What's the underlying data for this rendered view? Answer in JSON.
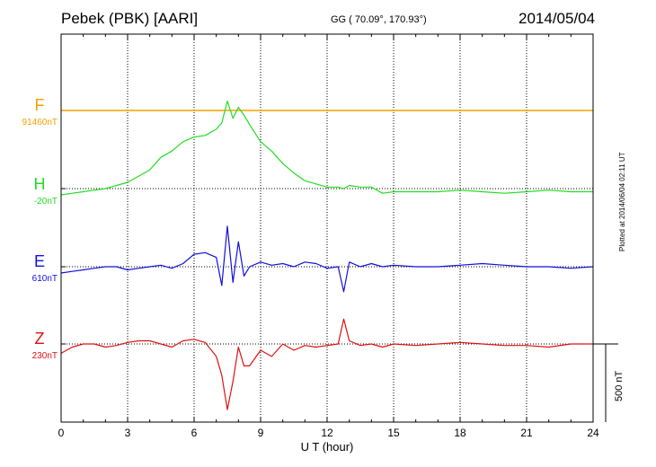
{
  "header": {
    "station": "Pebek (PBK)  [AARI]",
    "coords": "GG ( 70.09°, 170.93°)",
    "date": "2014/05/04"
  },
  "components": [
    {
      "letter": "F",
      "baseline": "91460nT",
      "color": "#f5a000"
    },
    {
      "letter": "H",
      "baseline": "-20nT",
      "color": "#22dd22"
    },
    {
      "letter": "E",
      "baseline": "610nT",
      "color": "#1010dd"
    },
    {
      "letter": "Z",
      "baseline": "230nT",
      "color": "#dd1111"
    }
  ],
  "scale_label": "500 nT",
  "plotted_note": "Plotted at 2014/06/04 02:11 UT",
  "chart_data": {
    "type": "line",
    "xlabel": "U T (hour)",
    "xlim": [
      0,
      24
    ],
    "xticks": [
      0,
      3,
      6,
      9,
      12,
      15,
      18,
      21,
      24
    ],
    "x": [
      0,
      0.5,
      1,
      1.5,
      2,
      2.5,
      3,
      3.5,
      4,
      4.5,
      5,
      5.5,
      6,
      6.5,
      7,
      7.25,
      7.5,
      7.75,
      8,
      8.25,
      8.5,
      9,
      9.5,
      10,
      10.5,
      11,
      11.5,
      12,
      12.5,
      12.75,
      13,
      13.5,
      14,
      14.5,
      15,
      16,
      17,
      18,
      19,
      20,
      21,
      22,
      23,
      24
    ],
    "series": [
      {
        "name": "F",
        "offset_nT": [
          0,
          0,
          0,
          0,
          0,
          0,
          0,
          0,
          0,
          0,
          0,
          0,
          0,
          0,
          0,
          0,
          0,
          0,
          0,
          0,
          0,
          0,
          0,
          0,
          0,
          0,
          0,
          0,
          0,
          0,
          0,
          0,
          0,
          0,
          0,
          0,
          0,
          0,
          0,
          0,
          0,
          0,
          0,
          0
        ]
      },
      {
        "name": "H",
        "offset_nT": [
          -40,
          -30,
          -20,
          -10,
          0,
          20,
          40,
          80,
          120,
          200,
          240,
          300,
          330,
          340,
          380,
          420,
          560,
          450,
          520,
          470,
          410,
          300,
          240,
          160,
          100,
          50,
          30,
          10,
          10,
          0,
          20,
          10,
          10,
          -30,
          -20,
          -20,
          -20,
          -10,
          -20,
          -30,
          -20,
          -10,
          -20,
          -20
        ]
      },
      {
        "name": "E",
        "offset_nT": [
          -40,
          -30,
          -20,
          -10,
          0,
          0,
          -20,
          -10,
          0,
          10,
          -10,
          20,
          80,
          90,
          60,
          -120,
          260,
          -100,
          160,
          -60,
          0,
          30,
          10,
          20,
          0,
          30,
          20,
          -10,
          0,
          -160,
          30,
          0,
          20,
          0,
          10,
          0,
          0,
          10,
          20,
          10,
          0,
          0,
          -10,
          0
        ]
      },
      {
        "name": "Z",
        "offset_nT": [
          -60,
          -20,
          0,
          0,
          -20,
          -10,
          10,
          20,
          20,
          0,
          -20,
          20,
          30,
          10,
          -80,
          -200,
          -420,
          -240,
          -20,
          -140,
          -140,
          -40,
          -80,
          0,
          -40,
          -10,
          -20,
          -10,
          0,
          160,
          20,
          -10,
          0,
          -20,
          0,
          -10,
          0,
          10,
          0,
          -10,
          -10,
          -20,
          0,
          0
        ]
      }
    ]
  }
}
